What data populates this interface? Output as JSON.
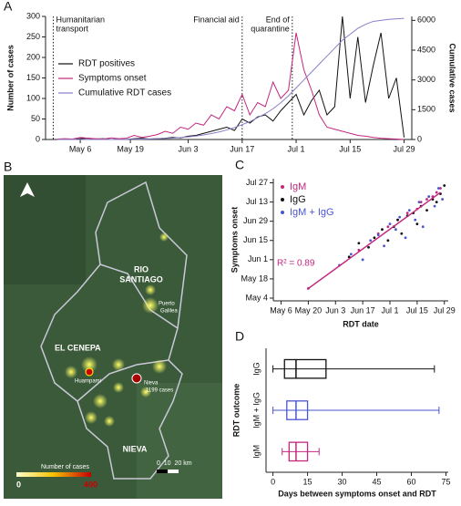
{
  "panels": [
    "A",
    "B",
    "C",
    "D"
  ],
  "map": {
    "regions": [
      "EL CENEPA",
      "RIO",
      "SANTIAGO",
      "NIEVA"
    ],
    "places": [
      "Puerto",
      "Galilea",
      "Huampami",
      "Nieva",
      "1199 cases"
    ],
    "legend_title": "Number of cases",
    "legend_min": "0",
    "legend_max": "400",
    "scale": "0  10  20 km"
  },
  "chart_data": [
    {
      "type": "line",
      "ylabel": "Number of cases",
      "y2label": "Cumulative cases",
      "x": [
        -6,
        -4,
        -2,
        0,
        2,
        4,
        6,
        8,
        10,
        12,
        14,
        16,
        18,
        20,
        22,
        24,
        26,
        28,
        30,
        32,
        34,
        36,
        38,
        40,
        42,
        44,
        46,
        48,
        50,
        52,
        54,
        56,
        58,
        60,
        62,
        64,
        66,
        68,
        70,
        72,
        74,
        76,
        78,
        80,
        82,
        84
      ],
      "series": [
        {
          "name": "RDT positives",
          "color": "#111111",
          "values": [
            0,
            0,
            0,
            2,
            3,
            1,
            2,
            0,
            1,
            0,
            2,
            3,
            1,
            2,
            3,
            5,
            4,
            8,
            10,
            15,
            20,
            25,
            30,
            22,
            50,
            40,
            55,
            60,
            45,
            70,
            90,
            110,
            60,
            95,
            120,
            60,
            80,
            300,
            100,
            250,
            90,
            180,
            260,
            100,
            150,
            5
          ]
        },
        {
          "name": "Symptoms onset",
          "color": "#c2287e",
          "values": [
            1,
            2,
            1,
            5,
            3,
            2,
            1,
            4,
            2,
            3,
            10,
            5,
            8,
            12,
            20,
            15,
            30,
            25,
            40,
            35,
            60,
            50,
            80,
            70,
            110,
            60,
            90,
            80,
            140,
            100,
            120,
            260,
            170,
            120,
            60,
            30,
            25,
            20,
            15,
            10,
            8,
            5,
            3,
            2,
            1,
            0
          ]
        },
        {
          "name": "Cumulative RDT cases",
          "color": "#8a7fc8",
          "axis": "y2",
          "values": [
            0,
            0,
            0,
            0,
            0,
            0,
            0,
            0,
            0,
            5,
            10,
            20,
            30,
            40,
            50,
            70,
            100,
            130,
            170,
            230,
            300,
            380,
            480,
            600,
            750,
            900,
            1100,
            1300,
            1550,
            1850,
            2200,
            2600,
            3000,
            3400,
            3800,
            4200,
            4600,
            5000,
            5300,
            5600,
            5800,
            5950,
            6000,
            6050,
            6080,
            6100
          ]
        }
      ],
      "xlim": [
        -9,
        86
      ],
      "xticks": [
        {
          "value": 0,
          "label": "May 6"
        },
        {
          "value": 13,
          "label": "May 19"
        },
        {
          "value": 28,
          "label": "Jun 3"
        },
        {
          "value": 42,
          "label": "Jun 17"
        },
        {
          "value": 56,
          "label": "Jul 1"
        },
        {
          "value": 70,
          "label": "Jul 15"
        },
        {
          "value": 84,
          "label": "Jul 29"
        }
      ],
      "ylim": [
        0,
        300
      ],
      "yticks": [
        0,
        50,
        100,
        150,
        200,
        250,
        300
      ],
      "y2lim": [
        0,
        6200
      ],
      "y2ticks": [
        0,
        1500,
        3000,
        4500,
        6000
      ],
      "annotations": [
        {
          "text": [
            "Humanitarian",
            "transport"
          ],
          "x": -7
        },
        {
          "text": [
            "Financial aid"
          ],
          "x": 42
        },
        {
          "text": [
            "End of",
            "quarantine"
          ],
          "x": 55
        }
      ],
      "legend": "upper left"
    },
    {
      "type": "scatter",
      "xlabel": "RDT date",
      "ylabel": "Symptoms onset",
      "series": [
        {
          "name": "IgM",
          "color": "#c2287e",
          "x": [
            14,
            40,
            50,
            55,
            60,
            65,
            70,
            72,
            75,
            78,
            80,
            82
          ],
          "y": [
            5,
            33,
            45,
            50,
            55,
            60,
            63,
            68,
            70,
            72,
            75,
            78
          ]
        },
        {
          "name": "IgG",
          "color": "#111111",
          "x": [
            35,
            40,
            45,
            48,
            52,
            55,
            58,
            60,
            62,
            65,
            68,
            70,
            72,
            75,
            78,
            80,
            82,
            84
          ],
          "y": [
            28,
            38,
            35,
            42,
            48,
            40,
            50,
            55,
            45,
            58,
            60,
            52,
            65,
            62,
            70,
            68,
            74,
            80
          ]
        },
        {
          "name": "IgM + IgG",
          "color": "#4a56d0",
          "x": [
            30,
            36,
            42,
            46,
            50,
            53,
            56,
            59,
            61,
            64,
            66,
            69,
            71,
            73,
            76,
            79,
            81,
            83
          ],
          "y": [
            22,
            30,
            26,
            40,
            44,
            36,
            52,
            48,
            57,
            42,
            62,
            55,
            68,
            50,
            72,
            65,
            78,
            70
          ]
        }
      ],
      "trendline": {
        "x": [
          14,
          82
        ],
        "y": [
          5,
          75
        ],
        "color": "#c2287e"
      },
      "annotation": "R² = 0.89",
      "xlim": [
        -4,
        86
      ],
      "xticks": [
        {
          "value": 0,
          "label": "May 6"
        },
        {
          "value": 14,
          "label": "May 20"
        },
        {
          "value": 28,
          "label": "Jun 3"
        },
        {
          "value": 42,
          "label": "Jun 17"
        },
        {
          "value": 56,
          "label": "Jul 1"
        },
        {
          "value": 70,
          "label": "Jul 15"
        },
        {
          "value": 84,
          "label": "Jul 29"
        }
      ],
      "ylim": [
        -4,
        85
      ],
      "yticks": [
        {
          "value": -2,
          "label": "May 4"
        },
        {
          "value": 12,
          "label": "May 18"
        },
        {
          "value": 26,
          "label": "Jun 1"
        },
        {
          "value": 40,
          "label": "Jun 15"
        },
        {
          "value": 54,
          "label": "Jun 29"
        },
        {
          "value": 68,
          "label": "Jul 13"
        },
        {
          "value": 82,
          "label": "Jul 27"
        }
      ],
      "legend": "upper left"
    },
    {
      "type": "box",
      "xlabel": "Days between symptoms onset and RDT",
      "ylabel": "RDT outcome",
      "categories": [
        "IgG",
        "IgM + IgG",
        "IgM"
      ],
      "colors": [
        "#111111",
        "#4a56d0",
        "#c2287e"
      ],
      "min": [
        0,
        0,
        4
      ],
      "q1": [
        5,
        6,
        7
      ],
      "median": [
        10,
        10,
        10
      ],
      "q3": [
        23,
        15,
        15
      ],
      "max": [
        70,
        72,
        20
      ],
      "xlim": [
        -3,
        76
      ],
      "xticks": [
        0,
        15,
        30,
        45,
        60,
        75
      ]
    }
  ]
}
